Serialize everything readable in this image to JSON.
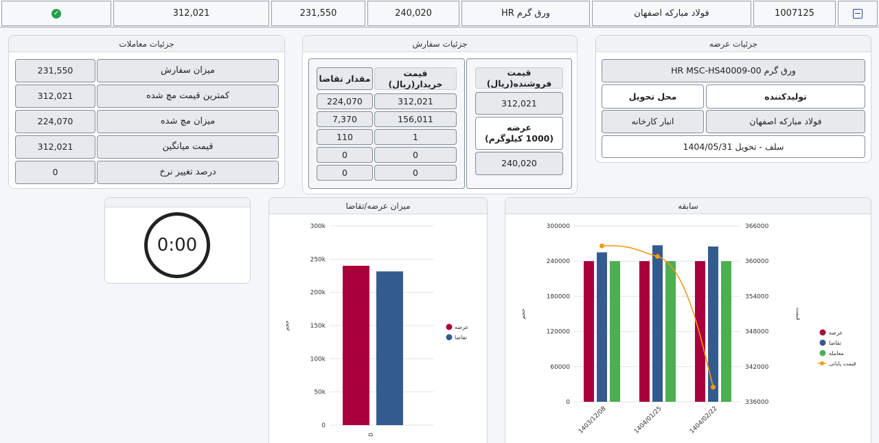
{
  "summary": {
    "code": "1007125",
    "producer": "فولاد مبارکه اصفهان",
    "product": "ورق گرم HR",
    "supply_price": "240,020",
    "supply_volume": "231,550",
    "buy_price": "312,021"
  },
  "offer_details": {
    "title": "جزئیات عرضه",
    "product_name": "ورق گرم HR MSC-HS40009-00",
    "producer_label": "تولیدکننده",
    "delivery_place_label": "محل تحویل",
    "producer_value": "فولاد مبارکه اصفهان",
    "delivery_place_value": "انبار کارخانه",
    "settlement": "سلف - تحویل 1404/05/31"
  },
  "order_details": {
    "title": "جزئیات سفارش",
    "seller_price_label": "قیمت فروشنده(ریال)",
    "seller_price_value": "312,021",
    "supply_label": "عرضه\n(1000 کیلوگرم)",
    "supply_value": "240,020",
    "buyer_price_label": "قیمت خریدار(ریال)",
    "demand_qty_label": "مقدار تقاضا",
    "rows": [
      {
        "price": "312,021",
        "qty": "224,070"
      },
      {
        "price": "156,011",
        "qty": "7,370"
      },
      {
        "price": "1",
        "qty": "110"
      },
      {
        "price": "0",
        "qty": "0"
      },
      {
        "price": "0",
        "qty": "0"
      }
    ]
  },
  "trade_details": {
    "title": "جزئیات معاملات",
    "rows": [
      {
        "label": "میزان سفارش",
        "value": "231,550"
      },
      {
        "label": "کمترین قیمت مچ شده",
        "value": "312,021"
      },
      {
        "label": "میزان مچ شده",
        "value": "224,070"
      },
      {
        "label": "قیمت میانگین",
        "value": "312,021"
      },
      {
        "label": "درصد تغییر نرخ",
        "value": "0"
      }
    ]
  },
  "timer": {
    "value": "0:00"
  },
  "colors": {
    "supply": "#a8003b",
    "demand": "#335b8f",
    "trade": "#4caf50",
    "final_price": "#f29a16"
  },
  "chart_data": [
    {
      "title": "میزان عرضه/تقاضا",
      "type": "bar",
      "categories": [
        "0"
      ],
      "ylabel": "حجم",
      "ylim": [
        0,
        300000
      ],
      "yticks": [
        "0",
        "50k",
        "100k",
        "150k",
        "200k",
        "250k",
        "300k"
      ],
      "series": [
        {
          "name": "عرضه",
          "values": [
            240020
          ]
        },
        {
          "name": "تقاضا",
          "values": [
            231550
          ]
        }
      ],
      "legend": "right"
    },
    {
      "title": "سابقه",
      "type": "bar",
      "categories": [
        "1403/12/08",
        "1404/01/25",
        "1404/02/22"
      ],
      "ylabel": "حجم",
      "y2label": "قیمت",
      "ylim": [
        0,
        300000
      ],
      "y2lim": [
        336000,
        366000
      ],
      "yticks": [
        "0",
        "60000",
        "120000",
        "180000",
        "240000",
        "300000"
      ],
      "y2ticks": [
        "336000",
        "342000",
        "348000",
        "354000",
        "360000",
        "366000"
      ],
      "series": [
        {
          "name": "عرضه",
          "values": [
            240000,
            240000,
            240000
          ]
        },
        {
          "name": "تقاضا",
          "values": [
            255000,
            267000,
            265000
          ]
        },
        {
          "name": "معامله",
          "values": [
            240000,
            240000,
            240000
          ]
        },
        {
          "name": "قیمت پایانی",
          "type": "line",
          "axis": "right",
          "values": [
            362600,
            360800,
            338500
          ]
        }
      ],
      "legend": "right"
    }
  ]
}
